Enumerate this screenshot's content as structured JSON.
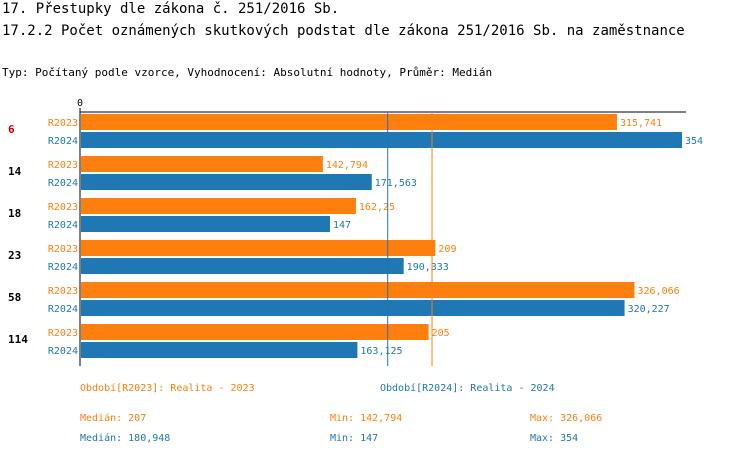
{
  "header": {
    "title": "17. Přestupky dle zákona č. 251/2016 Sb.",
    "subtitle": "17.2.2 Počet oznámených skutkových podstat dle zákona 251/2016 Sb. na zaměstnance",
    "meta": "Typ: Počítaný podle vzorce, Vyhodnocení: Absolutní hodnoty, Průměr: Medián"
  },
  "colors": {
    "R2023": "#ff7f0e",
    "R2024": "#1f77b4",
    "highlight_group": "#cc0000",
    "axis": "#000000"
  },
  "chart_data": {
    "type": "bar",
    "orientation": "horizontal",
    "x_axis_tick": "0",
    "xlim": [
      0,
      354
    ],
    "categories": [
      "6",
      "14",
      "18",
      "23",
      "58",
      "114"
    ],
    "highlighted_category": "6",
    "series": [
      {
        "name": "R2023",
        "values": [
          315.741,
          142.794,
          162.25,
          209,
          326.066,
          205
        ],
        "labels": [
          "315,741",
          "142,794",
          "162,25",
          "209",
          "326,066",
          "205"
        ]
      },
      {
        "name": "R2024",
        "values": [
          354,
          171.563,
          147,
          190.333,
          320.227,
          163.125
        ],
        "labels": [
          "354",
          "171,563",
          "147",
          "190,333",
          "320,227",
          "163,125"
        ]
      }
    ],
    "median_lines": [
      {
        "series": "R2023",
        "value": 207
      },
      {
        "series": "R2024",
        "value": 180.948
      }
    ],
    "legend": [
      {
        "series": "R2023",
        "text": "Období[R2023]: Realita - 2023"
      },
      {
        "series": "R2024",
        "text": "Období[R2024]: Realita - 2024"
      }
    ],
    "stats": [
      {
        "series": "R2023",
        "median": "Medián: 207",
        "min": "Min: 142,794",
        "max": "Max: 326,066"
      },
      {
        "series": "R2024",
        "median": "Medián: 180,948",
        "min": "Min: 147",
        "max": "Max: 354"
      }
    ]
  }
}
